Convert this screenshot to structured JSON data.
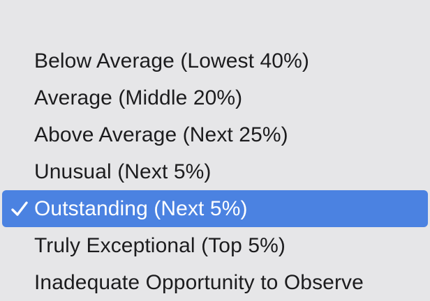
{
  "menu": {
    "selected_index": 4,
    "check_icon": "checkmark-icon",
    "colors": {
      "background": "#e6e6e8",
      "text": "#1c1c1e",
      "highlight": "#4b82e1",
      "highlight_text": "#ffffff"
    },
    "items": [
      {
        "label": "Below Average (Lowest 40%)"
      },
      {
        "label": "Average (Middle 20%)"
      },
      {
        "label": "Above Average (Next 25%)"
      },
      {
        "label": "Unusual (Next 5%)"
      },
      {
        "label": "Outstanding (Next 5%)"
      },
      {
        "label": "Truly Exceptional (Top 5%)"
      },
      {
        "label": "Inadequate Opportunity to Observe"
      }
    ]
  }
}
